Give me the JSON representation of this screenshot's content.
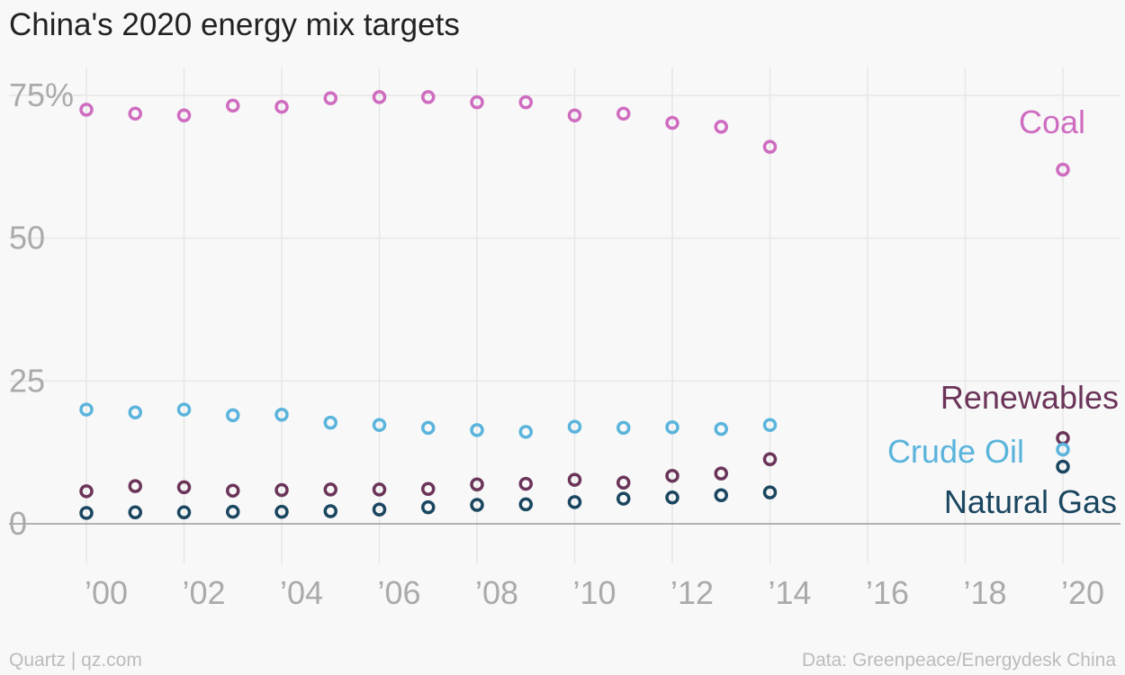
{
  "title": "China's 2020 energy mix targets",
  "footer": {
    "left": "Quartz | qz.com",
    "right": "Data: Greenpeace/Energydesk China"
  },
  "colors": {
    "coal": "#cf6cc0",
    "renewables": "#6b3459",
    "crude_oil": "#5ab4dc",
    "natural_gas": "#1a4660",
    "grid": "#e6e6e6",
    "baseline": "#9a9a9a",
    "tick_text": "#aaaaaa"
  },
  "chart_data": {
    "type": "scatter",
    "title": "China's 2020 energy mix targets",
    "xlabel": "",
    "ylabel": "",
    "xlim": [
      2000,
      2020
    ],
    "ylim": [
      0,
      75
    ],
    "grid": true,
    "y_ticks": [
      {
        "value": 75,
        "label": "75%"
      },
      {
        "value": 50,
        "label": "50"
      },
      {
        "value": 25,
        "label": "25"
      },
      {
        "value": 0,
        "label": "0"
      }
    ],
    "x_ticks": [
      {
        "value": 2000,
        "label": "’00"
      },
      {
        "value": 2002,
        "label": "’02"
      },
      {
        "value": 2004,
        "label": "’04"
      },
      {
        "value": 2006,
        "label": "’06"
      },
      {
        "value": 2008,
        "label": "’08"
      },
      {
        "value": 2010,
        "label": "’10"
      },
      {
        "value": 2012,
        "label": "’12"
      },
      {
        "value": 2014,
        "label": "’14"
      },
      {
        "value": 2016,
        "label": "’16"
      },
      {
        "value": 2018,
        "label": "’18"
      },
      {
        "value": 2020,
        "label": "’20"
      }
    ],
    "legend": "inline-right",
    "series": [
      {
        "name": "Coal",
        "color_key": "coal",
        "points": [
          {
            "x": 2000,
            "y": 72.5
          },
          {
            "x": 2001,
            "y": 71.8
          },
          {
            "x": 2002,
            "y": 71.5
          },
          {
            "x": 2003,
            "y": 73.2
          },
          {
            "x": 2004,
            "y": 73.0
          },
          {
            "x": 2005,
            "y": 74.5
          },
          {
            "x": 2006,
            "y": 74.7
          },
          {
            "x": 2007,
            "y": 74.7
          },
          {
            "x": 2008,
            "y": 73.8
          },
          {
            "x": 2009,
            "y": 73.8
          },
          {
            "x": 2010,
            "y": 71.5
          },
          {
            "x": 2011,
            "y": 71.8
          },
          {
            "x": 2012,
            "y": 70.2
          },
          {
            "x": 2013,
            "y": 69.5
          },
          {
            "x": 2014,
            "y": 66.0
          },
          {
            "x": 2020,
            "y": 62.0
          }
        ]
      },
      {
        "name": "Renewables",
        "color_key": "renewables",
        "points": [
          {
            "x": 2000,
            "y": 5.7
          },
          {
            "x": 2001,
            "y": 6.6
          },
          {
            "x": 2002,
            "y": 6.4
          },
          {
            "x": 2003,
            "y": 5.8
          },
          {
            "x": 2004,
            "y": 5.9
          },
          {
            "x": 2005,
            "y": 6.0
          },
          {
            "x": 2006,
            "y": 6.0
          },
          {
            "x": 2007,
            "y": 6.1
          },
          {
            "x": 2008,
            "y": 6.9
          },
          {
            "x": 2009,
            "y": 7.0
          },
          {
            "x": 2010,
            "y": 7.7
          },
          {
            "x": 2011,
            "y": 7.2
          },
          {
            "x": 2012,
            "y": 8.4
          },
          {
            "x": 2013,
            "y": 8.8
          },
          {
            "x": 2014,
            "y": 11.3
          },
          {
            "x": 2020,
            "y": 15.0
          }
        ]
      },
      {
        "name": "Crude Oil",
        "color_key": "crude_oil",
        "points": [
          {
            "x": 2000,
            "y": 20.0
          },
          {
            "x": 2001,
            "y": 19.5
          },
          {
            "x": 2002,
            "y": 20.0
          },
          {
            "x": 2003,
            "y": 19.0
          },
          {
            "x": 2004,
            "y": 19.1
          },
          {
            "x": 2005,
            "y": 17.7
          },
          {
            "x": 2006,
            "y": 17.3
          },
          {
            "x": 2007,
            "y": 16.8
          },
          {
            "x": 2008,
            "y": 16.4
          },
          {
            "x": 2009,
            "y": 16.1
          },
          {
            "x": 2010,
            "y": 17.0
          },
          {
            "x": 2011,
            "y": 16.8
          },
          {
            "x": 2012,
            "y": 16.9
          },
          {
            "x": 2013,
            "y": 16.6
          },
          {
            "x": 2014,
            "y": 17.3
          },
          {
            "x": 2020,
            "y": 13.0
          }
        ]
      },
      {
        "name": "Natural Gas",
        "color_key": "natural_gas",
        "points": [
          {
            "x": 2000,
            "y": 1.9
          },
          {
            "x": 2001,
            "y": 2.0
          },
          {
            "x": 2002,
            "y": 2.0
          },
          {
            "x": 2003,
            "y": 2.1
          },
          {
            "x": 2004,
            "y": 2.1
          },
          {
            "x": 2005,
            "y": 2.2
          },
          {
            "x": 2006,
            "y": 2.5
          },
          {
            "x": 2007,
            "y": 2.9
          },
          {
            "x": 2008,
            "y": 3.3
          },
          {
            "x": 2009,
            "y": 3.4
          },
          {
            "x": 2010,
            "y": 3.8
          },
          {
            "x": 2011,
            "y": 4.4
          },
          {
            "x": 2012,
            "y": 4.6
          },
          {
            "x": 2013,
            "y": 5.0
          },
          {
            "x": 2014,
            "y": 5.5
          },
          {
            "x": 2020,
            "y": 10.0
          }
        ]
      }
    ]
  }
}
